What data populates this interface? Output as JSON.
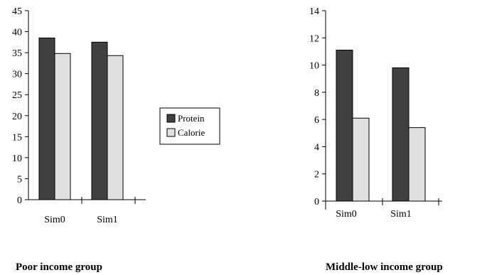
{
  "chart_data": [
    {
      "type": "bar",
      "title": "Poor income group",
      "xlabel": "",
      "ylabel": "",
      "categories": [
        "Sim0",
        "Sim1"
      ],
      "series": [
        {
          "name": "Protein",
          "values": [
            38.5,
            37.5
          ],
          "color": "#404040"
        },
        {
          "name": "Calorie",
          "values": [
            34.8,
            34.3
          ],
          "color": "#e0e0e0"
        }
      ],
      "ylim": [
        0,
        45
      ],
      "yticks": [
        0,
        5,
        10,
        15,
        20,
        25,
        30,
        35,
        40,
        45
      ],
      "grid": false
    },
    {
      "type": "bar",
      "title": "Middle-low income group",
      "xlabel": "",
      "ylabel": "",
      "categories": [
        "Sim0",
        "Sim1"
      ],
      "series": [
        {
          "name": "Protein",
          "values": [
            11.1,
            9.8
          ],
          "color": "#404040"
        },
        {
          "name": "Calorie",
          "values": [
            6.1,
            5.4
          ],
          "color": "#e0e0e0"
        }
      ],
      "ylim": [
        0,
        14
      ],
      "yticks": [
        0,
        2,
        4,
        6,
        8,
        10,
        12,
        14
      ],
      "grid": false
    }
  ],
  "legend": {
    "placement": "center",
    "items": [
      {
        "label": "Protein",
        "color": "#404040"
      },
      {
        "label": "Calorie",
        "color": "#e0e0e0"
      }
    ]
  }
}
